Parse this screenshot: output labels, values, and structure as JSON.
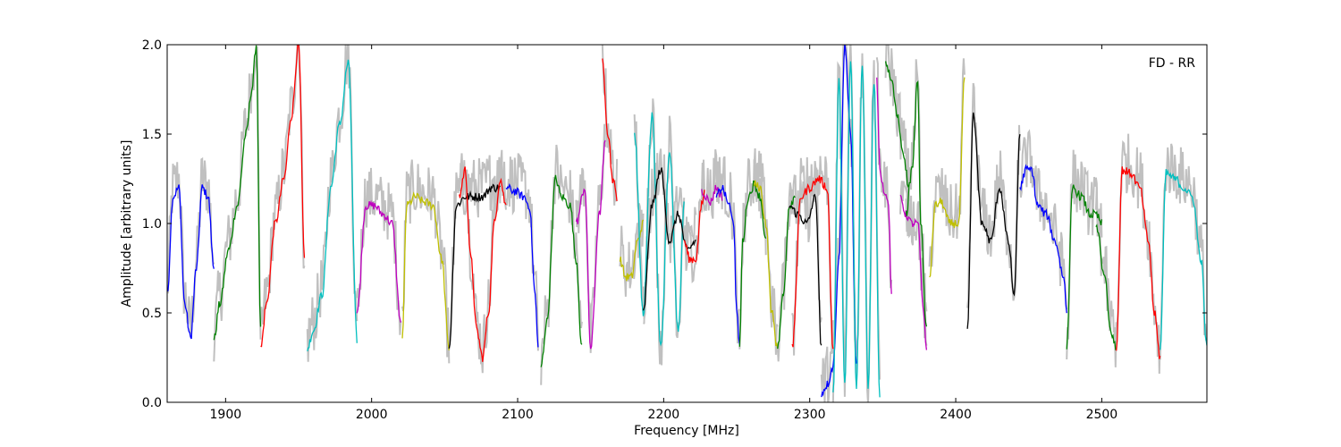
{
  "chart_data": {
    "type": "line",
    "title": "",
    "xlabel": "Frequency [MHz]",
    "ylabel": "Amplitude [arbitrary units]",
    "xlim": [
      1860,
      2572
    ],
    "ylim": [
      0.0,
      2.0
    ],
    "xticks": [
      1900,
      2000,
      2100,
      2200,
      2300,
      2400,
      2500
    ],
    "yticks": [
      0.0,
      0.5,
      1.0,
      1.5,
      2.0
    ],
    "xtick_labels": [
      "1900",
      "2000",
      "2100",
      "2200",
      "2300",
      "2400",
      "2500"
    ],
    "ytick_labels": [
      "0.0",
      "0.5",
      "1.0",
      "1.5",
      "2.0"
    ],
    "annotation": "FD - RR",
    "annotation_position": "top-right",
    "grid": false,
    "background_trace_color": "#c0c0c0",
    "series": [
      {
        "color": "#0000ff",
        "x": [
          1860,
          1864,
          1868,
          1872,
          1876,
          1880,
          1884,
          1888,
          1892
        ],
        "y": [
          0.6,
          1.15,
          1.2,
          0.55,
          0.36,
          0.75,
          1.2,
          1.15,
          0.75
        ]
      },
      {
        "color": "#008000",
        "x": [
          1892,
          1896,
          1902,
          1908,
          1914,
          1918,
          1921,
          1924
        ],
        "y": [
          0.35,
          0.55,
          0.85,
          1.1,
          1.5,
          1.75,
          2.0,
          0.4
        ]
      },
      {
        "color": "#ff0000",
        "x": [
          1924,
          1928,
          1934,
          1940,
          1945,
          1950,
          1954
        ],
        "y": [
          0.3,
          0.55,
          1.0,
          1.25,
          1.6,
          2.0,
          0.8
        ]
      },
      {
        "color": "#00bfbf",
        "x": [
          1956,
          1960,
          1966,
          1972,
          1978,
          1984,
          1990
        ],
        "y": [
          0.3,
          0.4,
          0.6,
          1.2,
          1.55,
          1.9,
          0.35
        ]
      },
      {
        "color": "#bf00bf",
        "x": [
          1990,
          1996,
          2002,
          2008,
          2014,
          2020
        ],
        "y": [
          0.5,
          1.1,
          1.1,
          1.05,
          1.0,
          0.45
        ]
      },
      {
        "color": "#bfbf00",
        "x": [
          2021,
          2024,
          2030,
          2036,
          2042,
          2048,
          2053
        ],
        "y": [
          0.35,
          1.1,
          1.15,
          1.12,
          1.1,
          0.8,
          0.3
        ]
      },
      {
        "color": "#000000",
        "x": [
          2053,
          2058,
          2064,
          2070,
          2076,
          2082,
          2088
        ],
        "y": [
          0.3,
          1.1,
          1.15,
          1.15,
          1.15,
          1.2,
          1.2
        ]
      },
      {
        "color": "#ff0000",
        "x": [
          2060,
          2064,
          2068,
          2072,
          2076,
          2080,
          2084,
          2088,
          2092
        ],
        "y": [
          1.15,
          1.3,
          0.8,
          0.4,
          0.25,
          0.5,
          1.0,
          1.25,
          1.1
        ]
      },
      {
        "color": "#0000ff",
        "x": [
          2092,
          2098,
          2104,
          2108,
          2112,
          2114
        ],
        "y": [
          1.2,
          1.18,
          1.15,
          1.1,
          0.6,
          0.3
        ]
      },
      {
        "color": "#008000",
        "x": [
          2116,
          2120,
          2126,
          2130,
          2136,
          2140,
          2144
        ],
        "y": [
          0.2,
          0.45,
          1.25,
          1.15,
          1.1,
          0.8,
          0.3
        ]
      },
      {
        "color": "#bf00bf",
        "x": [
          2140,
          2146,
          2150,
          2156,
          2160
        ],
        "y": [
          1.0,
          1.2,
          0.3,
          1.05,
          1.45
        ]
      },
      {
        "color": "#ff0000",
        "x": [
          2158,
          2162,
          2165,
          2168
        ],
        "y": [
          1.9,
          1.5,
          1.25,
          1.15
        ]
      },
      {
        "color": "#bfbf00",
        "x": [
          2170,
          2174,
          2178,
          2182,
          2186
        ],
        "y": [
          0.8,
          0.7,
          0.7,
          0.9,
          1.0
        ]
      },
      {
        "color": "#00bfbf",
        "x": [
          2180,
          2186,
          2192,
          2198,
          2204,
          2210,
          2214
        ],
        "y": [
          1.5,
          0.5,
          1.6,
          0.3,
          1.4,
          0.4,
          1.1
        ]
      },
      {
        "color": "#000000",
        "x": [
          2186,
          2192,
          2198,
          2204,
          2210,
          2216,
          2222
        ],
        "y": [
          0.5,
          1.1,
          1.3,
          0.9,
          1.05,
          0.85,
          0.9
        ]
      },
      {
        "color": "#ff0000",
        "x": [
          2214,
          2218,
          2222,
          2226,
          2228
        ],
        "y": [
          0.9,
          0.8,
          0.8,
          1.1,
          1.18
        ]
      },
      {
        "color": "#bf00bf",
        "x": [
          2226,
          2232,
          2236,
          2240
        ],
        "y": [
          1.18,
          1.12,
          1.2,
          1.15
        ]
      },
      {
        "color": "#0000ff",
        "x": [
          2236,
          2240,
          2244,
          2248,
          2250,
          2252
        ],
        "y": [
          1.15,
          1.2,
          1.12,
          1.0,
          0.5,
          0.3
        ]
      },
      {
        "color": "#008000",
        "x": [
          2252,
          2254,
          2258,
          2262,
          2266,
          2270
        ],
        "y": [
          0.3,
          0.9,
          1.15,
          1.22,
          1.15,
          0.9
        ]
      },
      {
        "color": "#bfbf00",
        "x": [
          2262,
          2266,
          2270,
          2274,
          2278
        ],
        "y": [
          1.22,
          1.2,
          1.0,
          0.5,
          0.3
        ]
      },
      {
        "color": "#008000",
        "x": [
          2278,
          2282,
          2286,
          2290
        ],
        "y": [
          0.3,
          0.6,
          1.1,
          1.15
        ]
      },
      {
        "color": "#000000",
        "x": [
          2286,
          2292,
          2298,
          2304,
          2308
        ],
        "y": [
          1.1,
          1.05,
          1.0,
          1.15,
          0.3
        ]
      },
      {
        "color": "#ff0000",
        "x": [
          2288,
          2294,
          2300,
          2306,
          2312,
          2316
        ],
        "y": [
          0.3,
          1.15,
          1.2,
          1.25,
          1.2,
          0.3
        ]
      },
      {
        "color": "#0000ff",
        "x": [
          2308,
          2312,
          2316,
          2320,
          2324,
          2328,
          2332
        ],
        "y": [
          0.05,
          0.1,
          0.2,
          0.8,
          2.0,
          1.5,
          0.2
        ]
      },
      {
        "color": "#00bfbf",
        "x": [
          2316,
          2320,
          2324,
          2328,
          2332,
          2336,
          2340,
          2344,
          2348
        ],
        "y": [
          0.05,
          1.8,
          0.1,
          1.9,
          0.1,
          1.9,
          0.1,
          1.8,
          0.05
        ]
      },
      {
        "color": "#bf00bf",
        "x": [
          2346,
          2348,
          2350,
          2354,
          2356
        ],
        "y": [
          1.8,
          1.3,
          1.2,
          1.1,
          0.6
        ]
      },
      {
        "color": "#008000",
        "x": [
          2352,
          2356,
          2360,
          2364,
          2368
        ],
        "y": [
          1.9,
          1.8,
          1.6,
          1.4,
          1.2
        ]
      },
      {
        "color": "#bf00bf",
        "x": [
          2362,
          2366,
          2370,
          2374,
          2378,
          2380
        ],
        "y": [
          1.15,
          1.05,
          1.0,
          1.0,
          0.5,
          0.3
        ]
      },
      {
        "color": "#008000",
        "x": [
          2366,
          2370,
          2374,
          2376,
          2380
        ],
        "y": [
          1.05,
          1.3,
          1.8,
          1.0,
          0.4
        ]
      },
      {
        "color": "#bfbf00",
        "x": [
          2382,
          2386,
          2390,
          2396,
          2402,
          2406
        ],
        "y": [
          0.7,
          1.1,
          1.12,
          1.0,
          1.0,
          1.8
        ]
      },
      {
        "color": "#000000",
        "x": [
          2408,
          2412,
          2418,
          2424,
          2430,
          2436,
          2440,
          2444
        ],
        "y": [
          0.4,
          1.6,
          1.0,
          0.9,
          1.2,
          0.9,
          0.6,
          1.5
        ]
      },
      {
        "color": "#0000ff",
        "x": [
          2444,
          2448,
          2452,
          2456,
          2462,
          2468,
          2474,
          2476
        ],
        "y": [
          1.2,
          1.3,
          1.3,
          1.1,
          1.05,
          0.9,
          0.7,
          0.5
        ]
      },
      {
        "color": "#008000",
        "x": [
          2476,
          2480,
          2486,
          2492,
          2496,
          2500
        ],
        "y": [
          0.3,
          1.2,
          1.15,
          1.05,
          1.05,
          1.0
        ]
      },
      {
        "color": "#008000",
        "x": [
          2496,
          2502,
          2506,
          2510
        ],
        "y": [
          1.0,
          0.7,
          0.4,
          0.3
        ]
      },
      {
        "color": "#ff0000",
        "x": [
          2510,
          2514,
          2520,
          2526,
          2532,
          2536,
          2540
        ],
        "y": [
          0.3,
          1.3,
          1.28,
          1.2,
          0.9,
          0.5,
          0.25
        ]
      },
      {
        "color": "#00bfbf",
        "x": [
          2540,
          2544,
          2550,
          2556,
          2562,
          2568,
          2572
        ],
        "y": [
          0.3,
          1.28,
          1.25,
          1.2,
          1.15,
          0.8,
          0.3
        ]
      }
    ]
  }
}
